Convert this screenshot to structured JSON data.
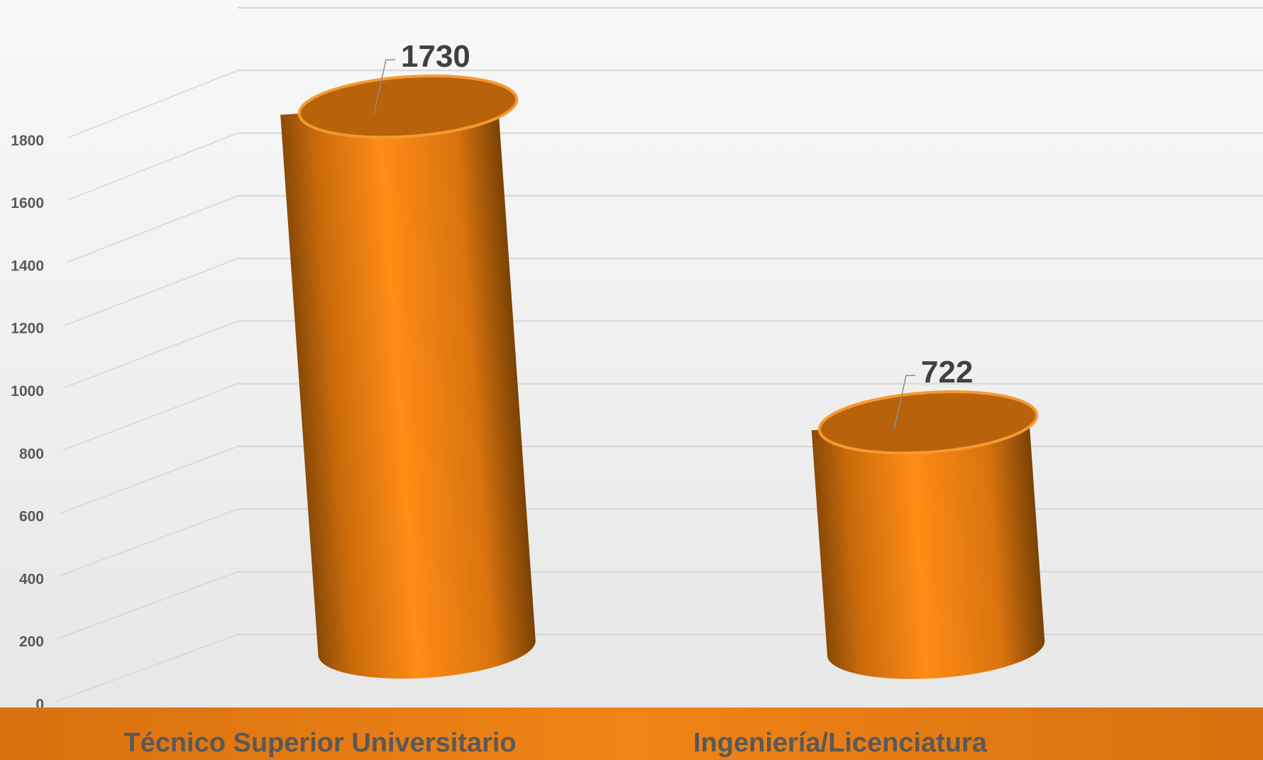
{
  "chart_data": {
    "type": "bar3d",
    "categories": [
      "Técnico Superior Universitario",
      "Ingeniería/Licenciatura"
    ],
    "values": [
      1730,
      722
    ],
    "color": "#f28a16",
    "ylim": [
      0,
      2000
    ],
    "yticks": [
      0,
      200,
      400,
      600,
      800,
      1000,
      1200,
      1400,
      1600,
      1800
    ],
    "grid": true
  }
}
